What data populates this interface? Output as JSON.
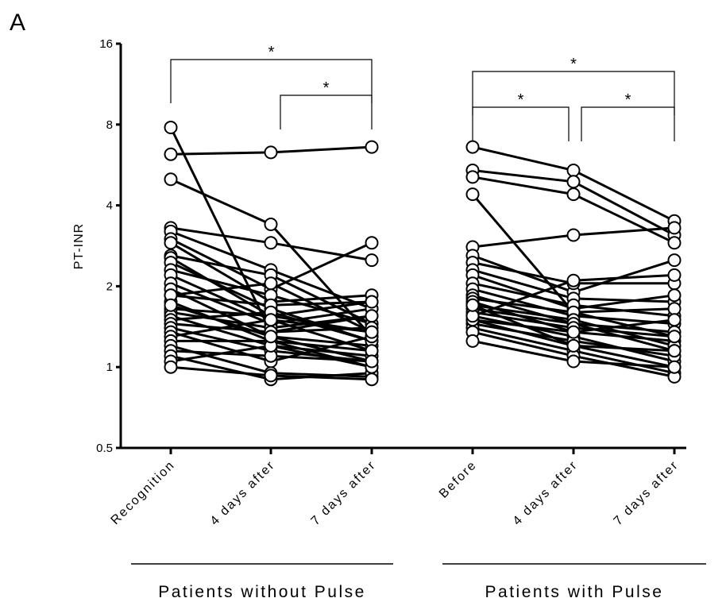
{
  "panel_label": "A",
  "chart_data": {
    "type": "line",
    "ylabel": "PT-INR",
    "yscale": "log2",
    "ylim": [
      0.5,
      16
    ],
    "yticks": [
      0.5,
      1,
      2,
      4,
      8,
      16
    ],
    "ytick_labels": [
      "0.5",
      "1",
      "2",
      "4",
      "8",
      "16"
    ],
    "grid": false,
    "groups": [
      {
        "name": "Patients without Pulse",
        "categories": [
          "Recognition",
          "4 days after",
          "7 days after"
        ],
        "subjects": [
          [
            7.8,
            1.35,
            1.55
          ],
          [
            6.2,
            6.3,
            6.6
          ],
          [
            5.0,
            3.4,
            1.3
          ],
          [
            3.3,
            2.9,
            2.5
          ],
          [
            3.2,
            2.3,
            1.65
          ],
          [
            3.0,
            1.95,
            2.9
          ],
          [
            2.9,
            1.75,
            1.85
          ],
          [
            2.6,
            2.2,
            1.45
          ],
          [
            2.55,
            1.55,
            1.75
          ],
          [
            2.45,
            1.65,
            1.25
          ],
          [
            2.3,
            1.85,
            1.45
          ],
          [
            2.2,
            1.5,
            1.35
          ],
          [
            2.05,
            1.45,
            1.65
          ],
          [
            1.95,
            1.3,
            1.2
          ],
          [
            1.85,
            1.7,
            1.75
          ],
          [
            1.75,
            1.25,
            1.15
          ],
          [
            1.65,
            1.55,
            1.35
          ],
          [
            1.6,
            1.4,
            1.55
          ],
          [
            1.55,
            1.2,
            1.1
          ],
          [
            1.5,
            1.6,
            1.25
          ],
          [
            1.45,
            1.35,
            1.4
          ],
          [
            1.4,
            1.15,
            1.05
          ],
          [
            1.35,
            1.05,
            1.3
          ],
          [
            1.3,
            1.5,
            1.15
          ],
          [
            1.25,
            1.25,
            1.0
          ],
          [
            1.2,
            0.95,
            0.92
          ],
          [
            1.15,
            1.1,
            1.05
          ],
          [
            1.1,
            0.9,
            0.95
          ],
          [
            1.05,
            1.2,
            1.0
          ],
          [
            1.0,
            0.93,
            0.9
          ],
          [
            1.85,
            2.05,
            1.35
          ],
          [
            1.7,
            1.3,
            1.05
          ]
        ]
      },
      {
        "name": "Patients with Pulse",
        "categories": [
          "Before",
          "4 days after",
          "7 days after"
        ],
        "subjects": [
          [
            6.6,
            5.4,
            3.5
          ],
          [
            5.4,
            4.9,
            3.1
          ],
          [
            5.1,
            4.4,
            2.9
          ],
          [
            4.4,
            1.6,
            1.3
          ],
          [
            2.8,
            3.1,
            3.3
          ],
          [
            2.6,
            1.9,
            2.5
          ],
          [
            2.45,
            2.05,
            2.05
          ],
          [
            2.3,
            1.8,
            1.75
          ],
          [
            2.2,
            1.65,
            1.85
          ],
          [
            2.05,
            1.7,
            1.55
          ],
          [
            1.95,
            1.55,
            1.45
          ],
          [
            1.85,
            1.45,
            1.35
          ],
          [
            1.8,
            1.6,
            1.65
          ],
          [
            1.75,
            1.35,
            1.25
          ],
          [
            1.7,
            1.5,
            1.2
          ],
          [
            1.65,
            1.45,
            1.15
          ],
          [
            1.6,
            1.4,
            1.3
          ],
          [
            1.55,
            1.3,
            1.05
          ],
          [
            1.5,
            1.2,
            1.0
          ],
          [
            1.45,
            1.25,
            1.1
          ],
          [
            1.4,
            1.15,
            0.95
          ],
          [
            1.35,
            1.1,
            0.92
          ],
          [
            1.25,
            1.05,
            1.0
          ],
          [
            1.5,
            1.35,
            1.5
          ],
          [
            1.55,
            2.1,
            2.2
          ],
          [
            1.7,
            1.2,
            1.15
          ]
        ]
      }
    ],
    "significance": [
      {
        "group": 0,
        "from": 0,
        "to": 2,
        "label": "*"
      },
      {
        "group": 0,
        "from": 1,
        "to": 2,
        "label": "*"
      },
      {
        "group": 1,
        "from": 0,
        "to": 2,
        "label": "*"
      },
      {
        "group": 1,
        "from": 0,
        "to": 1,
        "label": "*"
      },
      {
        "group": 1,
        "from": 1,
        "to": 2,
        "label": "*"
      }
    ]
  }
}
